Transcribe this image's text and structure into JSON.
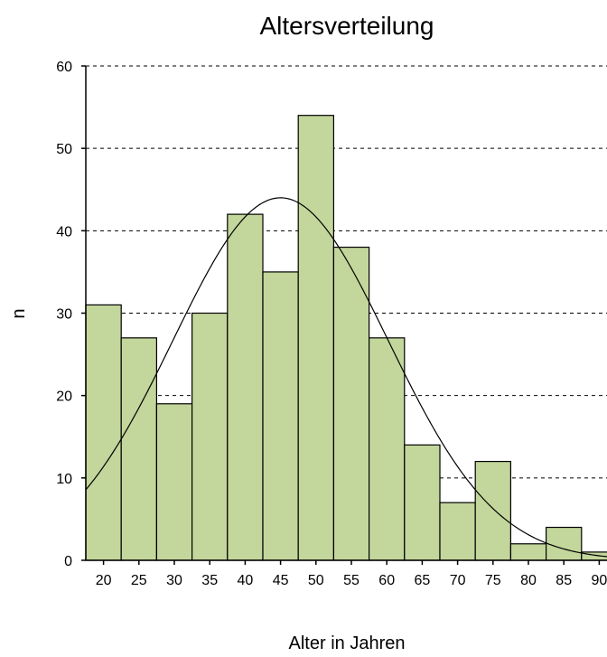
{
  "chart_data": {
    "type": "bar",
    "title": "Altersverteilung",
    "xlabel": "Alter in Jahren",
    "ylabel": "n",
    "categories": [
      "20",
      "25",
      "30",
      "35",
      "40",
      "45",
      "50",
      "55",
      "60",
      "65",
      "70",
      "75",
      "80",
      "85",
      "90"
    ],
    "values": [
      31,
      27,
      19,
      30,
      42,
      35,
      54,
      38,
      27,
      14,
      7,
      12,
      2,
      4,
      1
    ],
    "bin_width": 5,
    "ylim": [
      0,
      60
    ],
    "yticks": [
      0,
      10,
      20,
      30,
      40,
      50,
      60
    ],
    "grid": "horizontal dashed",
    "bar_color": "#c3d69b",
    "normal_curve": {
      "mean": 45,
      "peak": 44,
      "sd": 15.2
    }
  }
}
